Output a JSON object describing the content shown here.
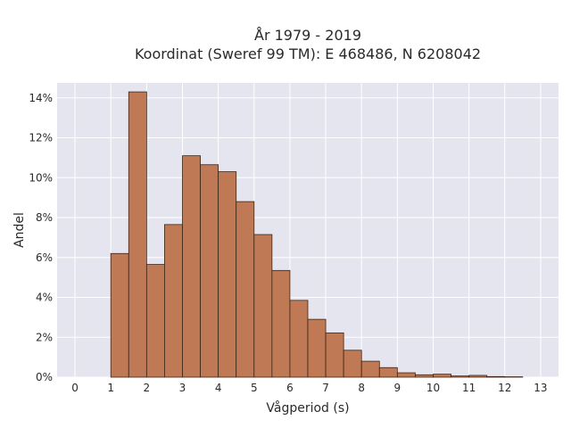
{
  "chart_data": {
    "type": "bar",
    "title_line1": "År 1979 - 2019",
    "title_line2": "Koordinat (Sweref 99 TM): E 468486, N 6208042",
    "xlabel": "Vågperiod (s)",
    "ylabel": "Andel",
    "xlim": [
      -0.5,
      13.5
    ],
    "ylim": [
      0,
      0.1475
    ],
    "x_ticks": [
      0,
      1,
      2,
      3,
      4,
      5,
      6,
      7,
      8,
      9,
      10,
      11,
      12,
      13
    ],
    "y_ticks": [
      {
        "value": 0.0,
        "label": "0%"
      },
      {
        "value": 0.02,
        "label": "2%"
      },
      {
        "value": 0.04,
        "label": "4%"
      },
      {
        "value": 0.06,
        "label": "6%"
      },
      {
        "value": 0.08,
        "label": "8%"
      },
      {
        "value": 0.1,
        "label": "10%"
      },
      {
        "value": 0.12,
        "label": "12%"
      },
      {
        "value": 0.14,
        "label": "14%"
      }
    ],
    "bin_width": 0.5,
    "bin_starts": [
      1.0,
      1.5,
      2.0,
      2.5,
      3.0,
      3.5,
      4.0,
      4.5,
      5.0,
      5.5,
      6.0,
      6.5,
      7.0,
      7.5,
      8.0,
      8.5,
      9.0,
      9.5,
      10.0,
      10.5,
      11.0,
      11.5,
      12.0
    ],
    "values": [
      0.062,
      0.143,
      0.0565,
      0.0765,
      0.111,
      0.1065,
      0.103,
      0.088,
      0.0715,
      0.0535,
      0.0385,
      0.029,
      0.0222,
      0.0135,
      0.008,
      0.0048,
      0.0022,
      0.0012,
      0.0015,
      0.0006,
      0.0009,
      0.0003,
      0.0002
    ],
    "grid": true,
    "colors": {
      "bar_fill": "#bf7a55",
      "bar_stroke": "#3b2416",
      "plot_bg": "#e5e5f0",
      "grid": "#ffffff",
      "text": "#2a2a2a"
    }
  }
}
